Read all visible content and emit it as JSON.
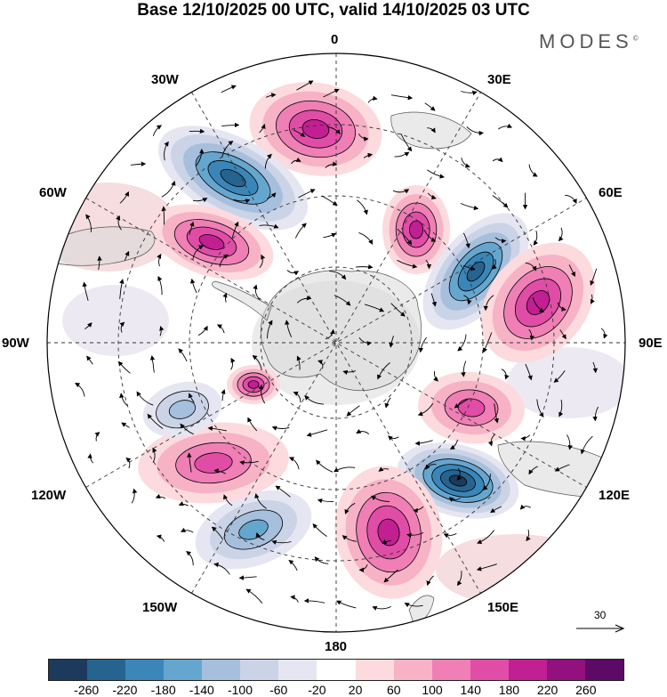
{
  "title": "Base 12/10/2025 00 UTC, valid 14/10/2025 03 UTC",
  "brand": "MODES",
  "brand_mark": "©",
  "longitude_labels": {
    "top": "0",
    "top_left": "30W",
    "top_right": "30E",
    "upper_left": "60W",
    "upper_right": "60E",
    "left": "90W",
    "right": "90E",
    "lower_left": "120W",
    "lower_right": "120E",
    "bottom_left": "150W",
    "bottom_right": "150E",
    "bottom": "180"
  },
  "reference_vector_label": "30",
  "colorbar": {
    "colors": [
      "#1b3a5c",
      "#26648f",
      "#3a86b8",
      "#65a6cf",
      "#a5bfdc",
      "#cbd3e7",
      "#e6e6f2",
      "#ffffff",
      "#fcdadd",
      "#f7b2c6",
      "#ef7fb5",
      "#e04da6",
      "#c21f93",
      "#92117e",
      "#5c0a66"
    ],
    "tick_labels": [
      "-260",
      "-220",
      "-180",
      "-140",
      "-100",
      "-60",
      "-20",
      "20",
      "60",
      "100",
      "140",
      "180",
      "220",
      "260"
    ]
  },
  "map_colors": {
    "ocean_grey": "#ebebeb",
    "land_grey": "#d9d9d9",
    "contour": "#000000",
    "grid": "#333333"
  },
  "anomaly_features": [
    {
      "label": "positive-anomaly-0E",
      "value": 200
    },
    {
      "label": "negative-anomaly-40W",
      "value": -240
    },
    {
      "label": "positive-anomaly-60W",
      "value": 200
    },
    {
      "label": "positive-anomaly-20E",
      "value": 200
    },
    {
      "label": "negative-anomaly-45E",
      "value": -240
    },
    {
      "label": "positive-anomaly-75E",
      "value": 200
    },
    {
      "label": "positive-anomaly-105E",
      "value": 160
    },
    {
      "label": "negative-anomaly-130E",
      "value": -260
    },
    {
      "label": "positive-anomaly-165E",
      "value": 200
    },
    {
      "label": "negative-anomaly-150W",
      "value": -140
    },
    {
      "label": "positive-anomaly-125W",
      "value": 140
    },
    {
      "label": "negative-anomaly-110W",
      "value": -100
    },
    {
      "label": "positive-anomaly-105W",
      "value": 180
    }
  ]
}
